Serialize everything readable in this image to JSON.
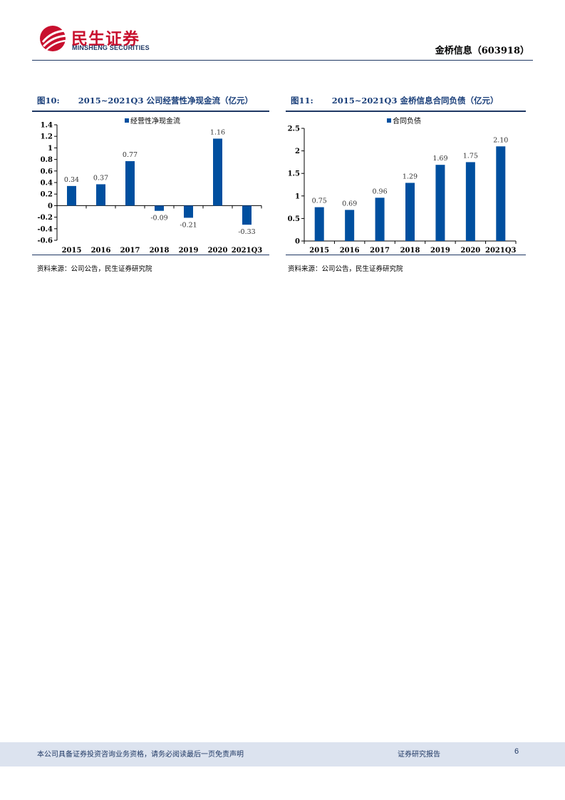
{
  "header": {
    "logo_cn": "民生证券",
    "logo_en": "MINSHENG SECURITIES",
    "doc_title": "金桥信息（603918）",
    "brand_color": "#c8102e",
    "accent_color": "#1f3864"
  },
  "figures": [
    {
      "label": "图10:",
      "title": "2015~2021Q3 公司经营性净现金流（亿元）",
      "source": "资料来源：公司公告，民生证券研究院"
    },
    {
      "label": "图11:",
      "title": "2015~2021Q3 金桥信息合同负债（亿元）",
      "source": "资料来源：公司公告，民生证券研究院"
    }
  ],
  "chart_data": [
    {
      "type": "bar",
      "title": "2015~2021Q3 公司经营性净现金流（亿元）",
      "categories": [
        "2015",
        "2016",
        "2017",
        "2018",
        "2019",
        "2020",
        "2021Q3"
      ],
      "series": [
        {
          "name": "经营性净现金流",
          "values": [
            0.34,
            0.37,
            0.77,
            -0.09,
            -0.21,
            1.16,
            -0.33
          ]
        }
      ],
      "data_labels": [
        "0.34",
        "0.37",
        "0.77",
        "-0.09",
        "-0.21",
        "1.16",
        "-0.33"
      ],
      "yticks": [
        "1.4",
        "1.2",
        "1",
        "0.8",
        "0.6",
        "0.4",
        "0.2",
        "0",
        "-0.2",
        "-0.4",
        "-0.6"
      ],
      "ylim": [
        -0.6,
        1.4
      ],
      "bar_color": "#004f9f",
      "legend": "top"
    },
    {
      "type": "bar",
      "title": "2015~2021Q3 金桥信息合同负债（亿元）",
      "categories": [
        "2015",
        "2016",
        "2017",
        "2018",
        "2019",
        "2020",
        "2021Q3"
      ],
      "series": [
        {
          "name": "合同负债",
          "values": [
            0.75,
            0.69,
            0.96,
            1.29,
            1.69,
            1.75,
            2.1
          ]
        }
      ],
      "data_labels": [
        "0.75",
        "0.69",
        "0.96",
        "1.29",
        "1.69",
        "1.75",
        "2.10"
      ],
      "yticks": [
        "2.5",
        "2",
        "1.5",
        "1",
        "0.5",
        "0"
      ],
      "ylim": [
        0,
        2.5
      ],
      "bar_color": "#004f9f",
      "legend": "top"
    }
  ],
  "footer": {
    "disclaimer": "本公司具备证券投资咨询业务资格，请务必阅读最后一页免责声明",
    "report_type": "证券研究报告",
    "page_number": "6"
  }
}
